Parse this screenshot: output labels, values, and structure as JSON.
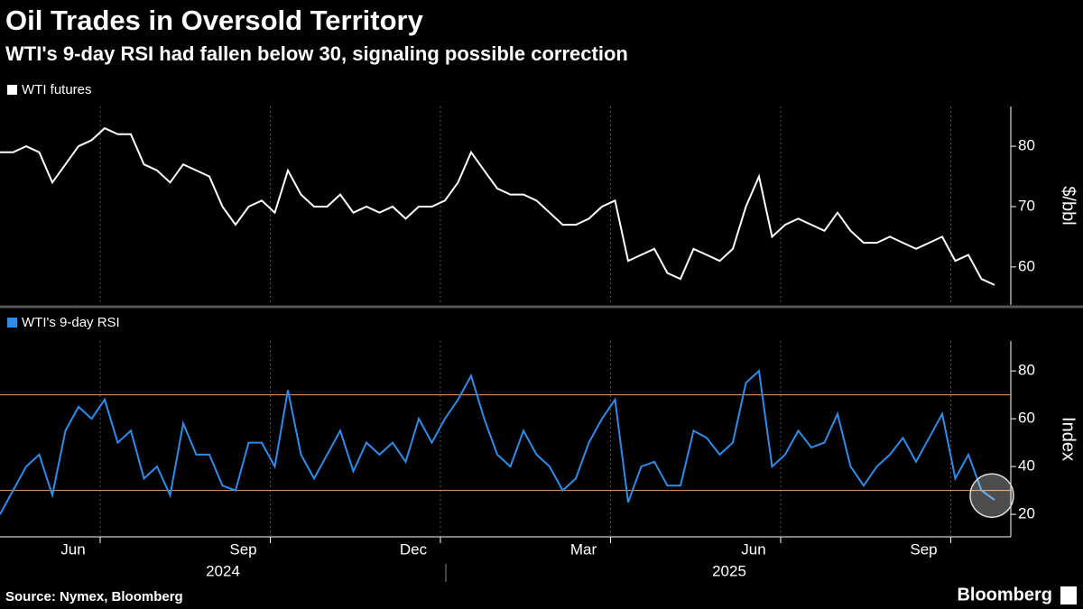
{
  "header": {
    "title": "Oil Trades in Oversold Territory",
    "subtitle": "WTI's 9-day RSI had fallen below 30, signaling possible correction"
  },
  "chart_data": [
    {
      "type": "line",
      "series": [
        {
          "name": "WTI futures",
          "color": "#ffffff",
          "values": [
            79,
            79,
            80,
            79,
            74,
            77,
            80,
            81,
            83,
            82,
            82,
            77,
            76,
            74,
            77,
            76,
            75,
            70,
            67,
            70,
            71,
            69,
            76,
            72,
            70,
            70,
            72,
            69,
            70,
            69,
            70,
            68,
            70,
            70,
            71,
            74,
            79,
            76,
            73,
            72,
            72,
            71,
            69,
            67,
            67,
            68,
            70,
            71,
            61,
            62,
            63,
            59,
            58,
            63,
            62,
            61,
            63,
            70,
            75,
            65,
            67,
            68,
            67,
            66,
            69,
            66,
            64,
            64,
            65,
            64,
            63,
            64,
            65,
            61,
            62,
            58,
            57
          ]
        }
      ],
      "ylim": [
        53.7,
        86.6
      ],
      "yticks": [
        60,
        70,
        80
      ],
      "ylabel": "$/bbl"
    },
    {
      "type": "line",
      "series": [
        {
          "name": "WTI's 9-day RSI",
          "color": "#2f8ce8",
          "values": [
            20,
            30,
            40,
            45,
            28,
            55,
            65,
            60,
            68,
            50,
            55,
            35,
            40,
            28,
            58,
            45,
            45,
            32,
            30,
            50,
            50,
            40,
            72,
            45,
            35,
            45,
            55,
            38,
            50,
            45,
            50,
            42,
            60,
            50,
            60,
            68,
            78,
            60,
            45,
            40,
            55,
            45,
            40,
            30,
            35,
            50,
            60,
            68,
            25,
            40,
            42,
            32,
            32,
            55,
            52,
            45,
            50,
            75,
            80,
            40,
            45,
            55,
            48,
            50,
            62,
            40,
            32,
            40,
            45,
            52,
            42,
            52,
            62,
            35,
            45,
            30,
            26
          ]
        }
      ],
      "categories": [
        null,
        null,
        null,
        null,
        null,
        null,
        "Jun",
        null,
        null,
        null,
        null,
        null,
        null,
        null,
        null,
        null,
        null,
        null,
        null,
        "Sep",
        null,
        null,
        null,
        null,
        null,
        null,
        null,
        null,
        null,
        null,
        null,
        null,
        "Dec",
        null,
        null,
        null,
        null,
        null,
        null,
        null,
        null,
        null,
        null,
        null,
        null,
        "Mar",
        null,
        null,
        null,
        null,
        null,
        null,
        null,
        null,
        null,
        null,
        null,
        null,
        "Jun",
        null,
        null,
        null,
        null,
        null,
        null,
        null,
        null,
        null,
        null,
        null,
        null,
        "Sep",
        null,
        null,
        null,
        null,
        null
      ],
      "year_labels": [
        "2024",
        "2025"
      ],
      "reference_lines": [
        70,
        30
      ],
      "reference_color": "#f0a060",
      "ylim": [
        10.6,
        92.5
      ],
      "yticks": [
        20,
        40,
        60,
        80
      ],
      "ylabel": "Index"
    }
  ],
  "footer": {
    "source": "Source: Nymex, Bloomberg",
    "brand": "Bloomberg"
  }
}
